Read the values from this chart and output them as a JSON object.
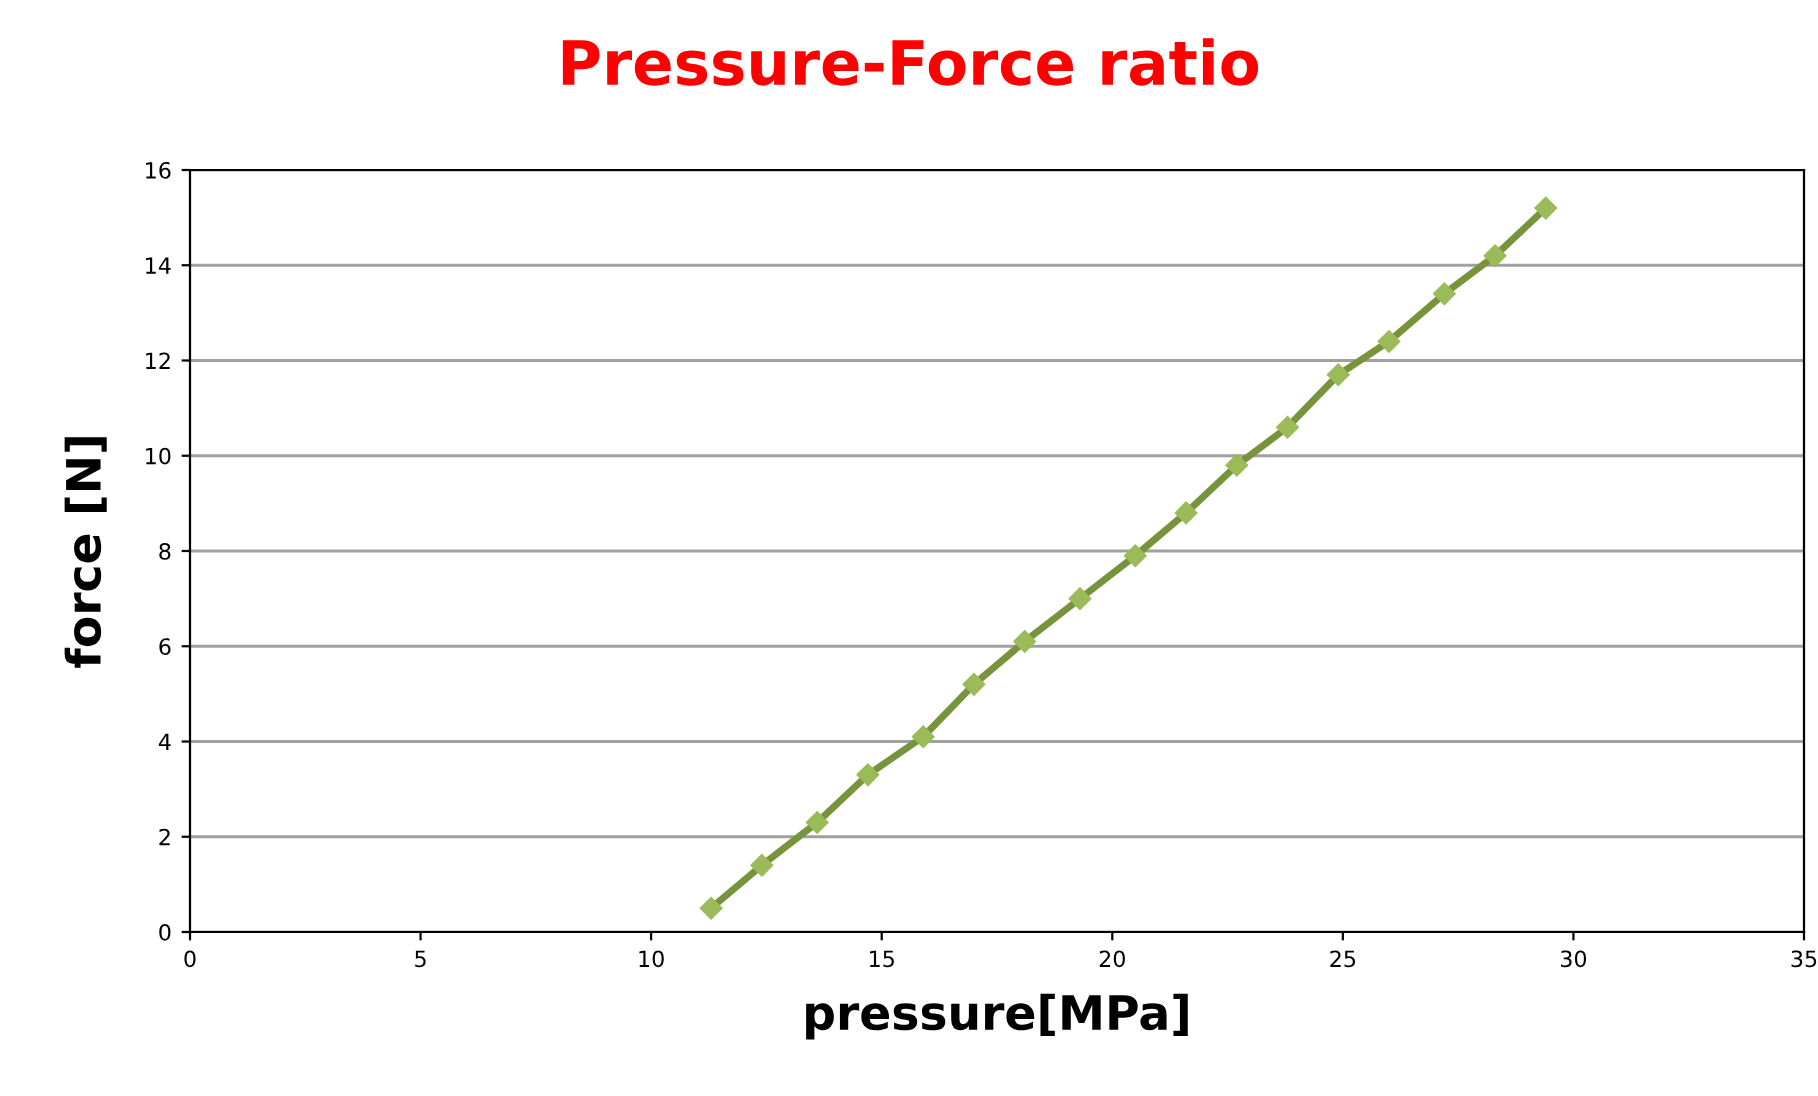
{
  "chart_data": {
    "type": "line",
    "title": "Pressure-Force ratio",
    "xlabel": "pressure[MPa]",
    "ylabel": "force [N]",
    "x": [
      11.3,
      12.4,
      13.6,
      14.7,
      15.9,
      17.0,
      18.1,
      19.3,
      20.5,
      21.6,
      22.7,
      23.8,
      24.9,
      26.0,
      27.2,
      28.3,
      29.4
    ],
    "series": [
      {
        "color": "#77933c",
        "values": [
          0.5,
          1.4,
          2.3,
          3.3,
          4.1,
          5.2,
          6.1,
          7.0,
          7.9,
          8.8,
          9.8,
          10.6,
          11.7,
          12.4,
          13.4,
          14.2,
          15.2
        ]
      }
    ],
    "xlim": [
      0,
      35
    ],
    "xticks": [
      0,
      5,
      10,
      15,
      20,
      25,
      30,
      35
    ],
    "ylim": [
      0,
      16
    ],
    "yticks": [
      0,
      2,
      4,
      6,
      8,
      10,
      12,
      14,
      16
    ],
    "grid": "y",
    "marker": "diamond",
    "line_style": "solid"
  }
}
